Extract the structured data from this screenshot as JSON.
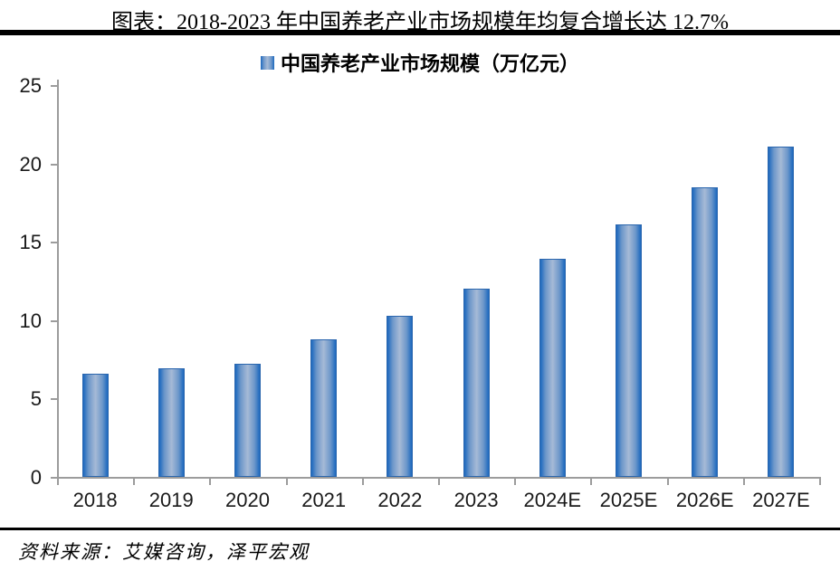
{
  "page": {
    "title": "图表：2018-2023 年中国养老产业市场规模年均复合增长达 12.7%",
    "source": "资料来源：艾媒咨询，泽平宏观"
  },
  "legend": {
    "label": "中国养老产业市场规模（万亿元）"
  },
  "colors": {
    "bar_edge": "#1c68be",
    "bar_mid": "#6d97ca",
    "bar_center": "#a6bad6",
    "bar_border": "#2a66ae",
    "axis_line": "#9c9c9c",
    "label_text": "#1a1a1a",
    "rule": "#000000"
  },
  "chart_data": {
    "type": "bar",
    "title": "图表：2018-2023 年中国养老产业市场规模年均复合增长达 12.7%",
    "legend_entries": [
      "中国养老产业市场规模（万亿元）"
    ],
    "legend_position": "top",
    "categories": [
      "2018",
      "2019",
      "2020",
      "2021",
      "2022",
      "2023",
      "2024E",
      "2025E",
      "2026E",
      "2027E"
    ],
    "values": [
      6.6,
      6.9,
      7.2,
      8.8,
      10.3,
      12.0,
      13.9,
      16.1,
      18.5,
      21.1
    ],
    "xlabel": "",
    "ylabel": "",
    "ylim": [
      0,
      25
    ],
    "yticks": [
      0,
      5,
      10,
      15,
      20,
      25
    ],
    "grid": false,
    "source": "资料来源：艾媒咨询，泽平宏观"
  }
}
